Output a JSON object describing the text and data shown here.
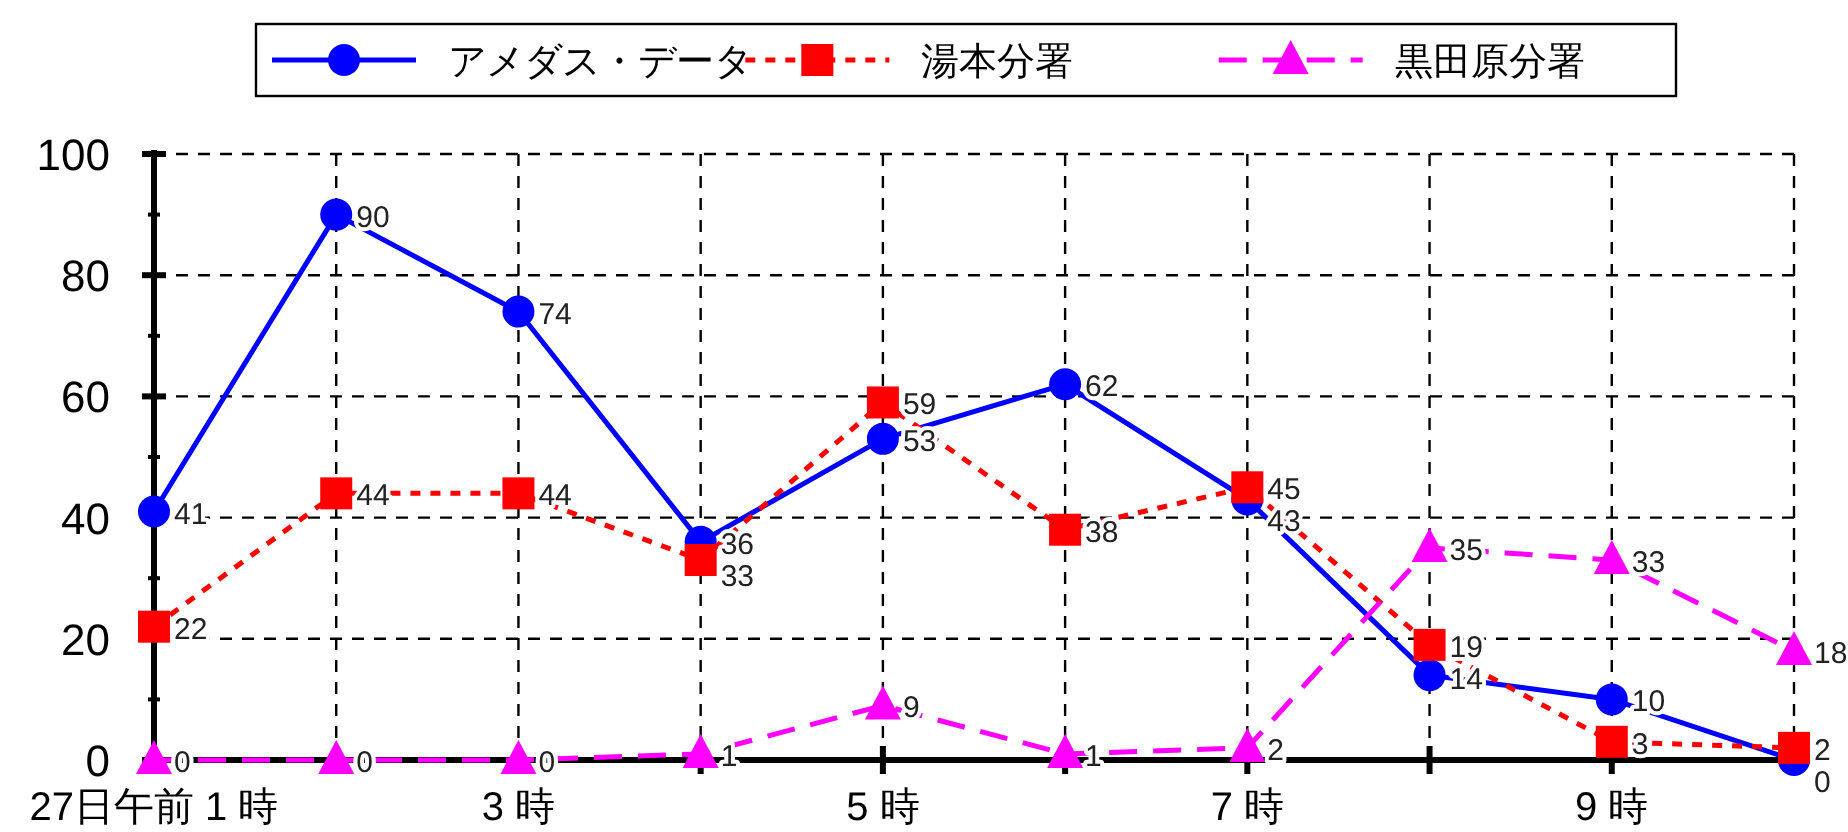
{
  "chart_data": {
    "type": "line",
    "categories": [
      "27日午前 1 時",
      null,
      "3 時",
      null,
      "5 時",
      null,
      "7 時",
      null,
      "9 時",
      null
    ],
    "series": [
      {
        "name": "アメダス・データ",
        "color": "#0000ff",
        "marker": "circle",
        "line_style": "solid",
        "values": [
          41,
          90,
          74,
          36,
          53,
          62,
          43,
          14,
          10,
          0
        ]
      },
      {
        "name": "湯本分署",
        "color": "#ff0000",
        "marker": "square",
        "line_style": "dotted",
        "values": [
          22,
          44,
          44,
          33,
          59,
          38,
          45,
          19,
          3,
          2
        ]
      },
      {
        "name": "黒田原分署",
        "color": "#ff00ff",
        "marker": "triangle",
        "line_style": "dashed",
        "values": [
          0,
          0,
          0,
          1,
          9,
          1,
          2,
          35,
          33,
          18
        ]
      }
    ],
    "ylim": [
      0,
      100
    ],
    "yticks": [
      0,
      20,
      40,
      60,
      80,
      100
    ],
    "grid": true,
    "legend": "top",
    "data_labels": true
  }
}
